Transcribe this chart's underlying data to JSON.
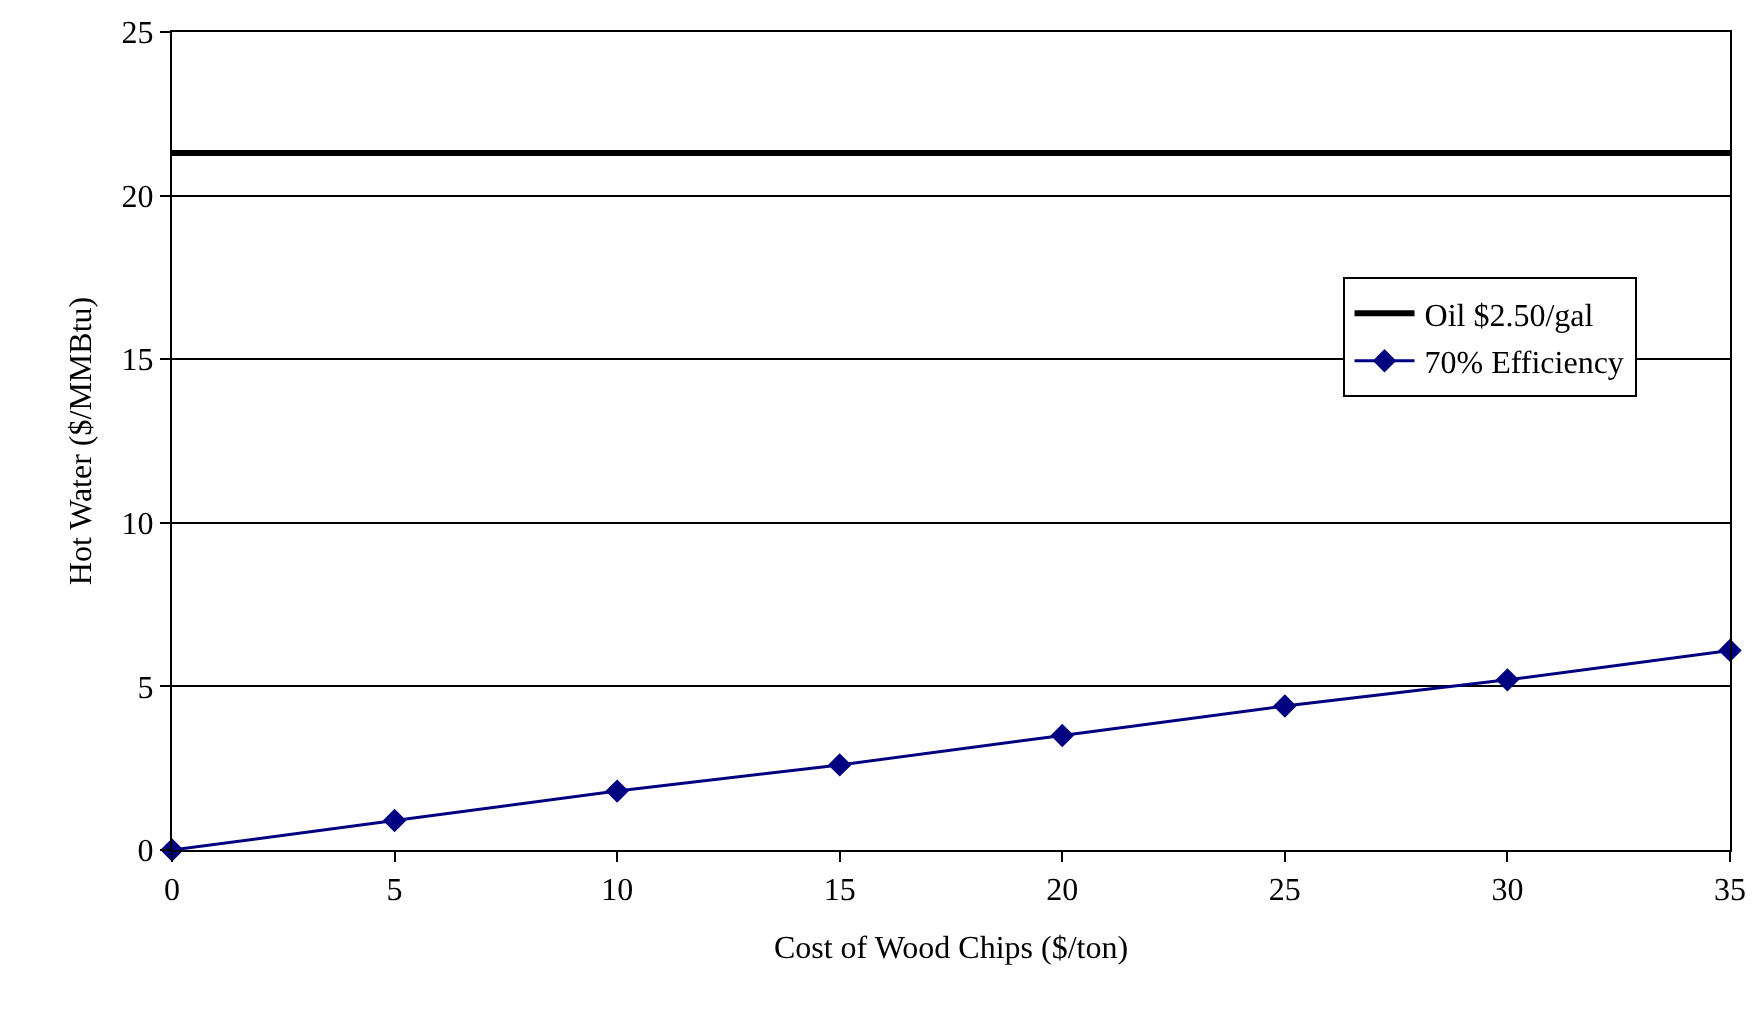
{
  "chart_data": {
    "type": "line",
    "xlabel": "Cost of Wood Chips ($/ton)",
    "ylabel": "Hot Water ($/MMBtu)",
    "x": [
      0,
      5,
      10,
      15,
      20,
      25,
      30,
      35
    ],
    "series": [
      {
        "name": "Oil $2.50/gal",
        "color": "#000000",
        "x": [
          0,
          35
        ],
        "values": [
          21.3,
          21.3
        ],
        "marker": "none"
      },
      {
        "name": "70% Efficiency",
        "color": "#000080",
        "values": [
          0,
          0.9,
          1.8,
          2.6,
          3.5,
          4.4,
          5.2,
          6.1
        ],
        "marker": "diamond"
      }
    ],
    "xlim": [
      0,
      35
    ],
    "xticks": [
      0,
      5,
      10,
      15,
      20,
      25,
      30,
      35
    ],
    "ylim": [
      0,
      25
    ],
    "yticks": [
      0,
      5,
      10,
      15,
      20,
      25
    ],
    "grid": "y",
    "legend": "top right",
    "line_style": "solid"
  }
}
